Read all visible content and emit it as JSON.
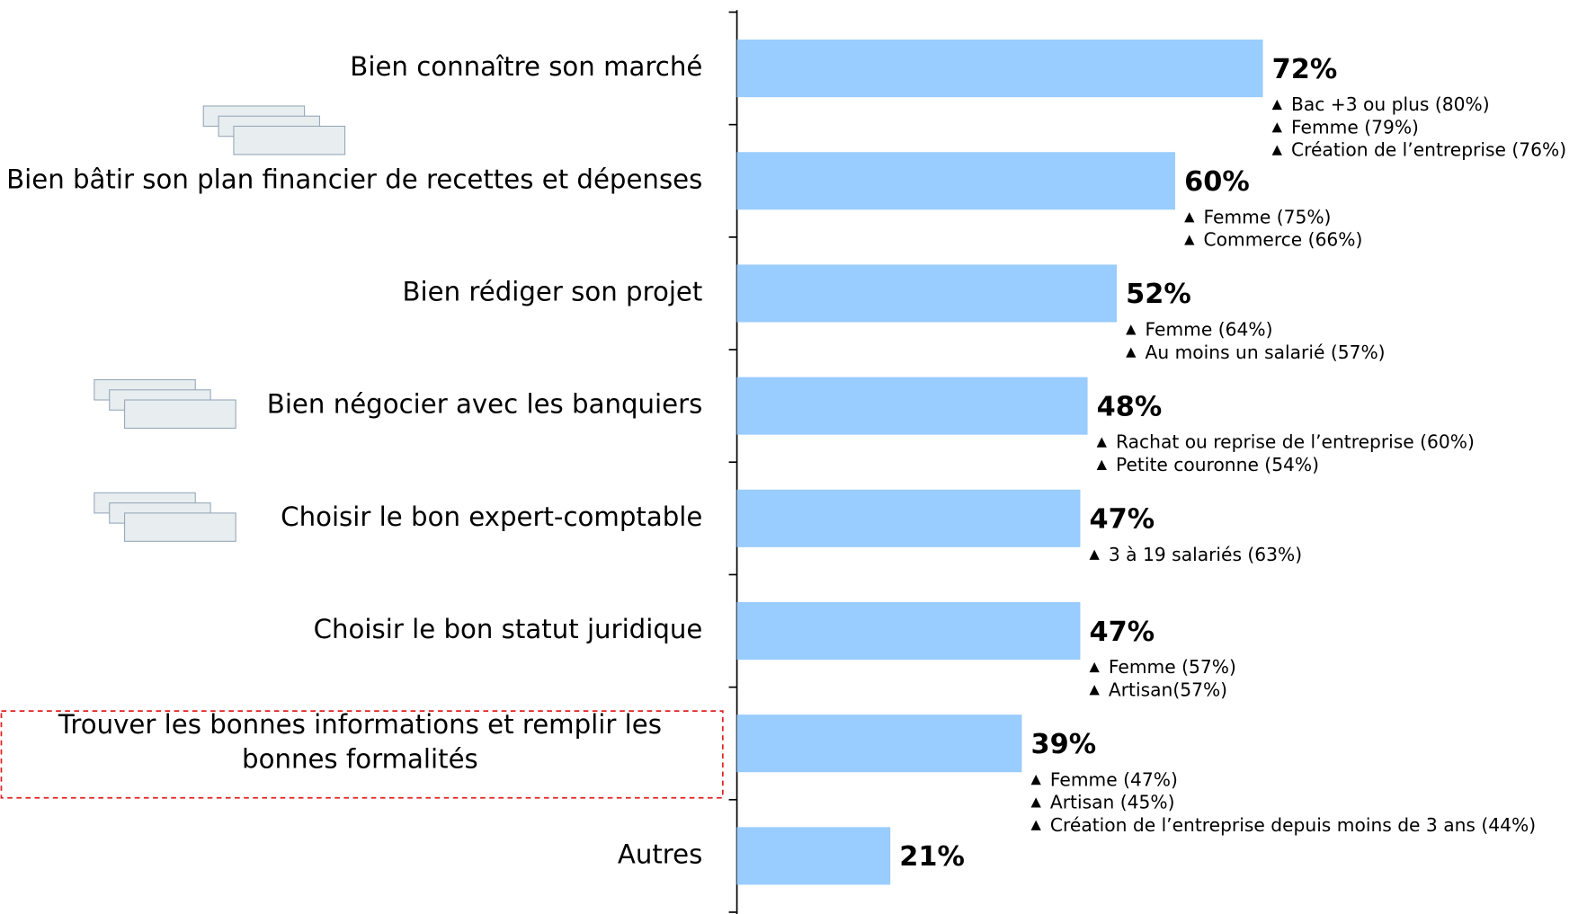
{
  "chart_data": {
    "type": "bar",
    "orientation": "horizontal",
    "categories": [
      "Bien connaître son marché",
      "Bien bâtir son plan financier de recettes et dépenses",
      "Bien rédiger son projet",
      "Bien négocier avec les banquiers",
      "Choisir le bon expert-comptable",
      "Choisir le bon statut juridique",
      "Trouver les bonnes informations et remplir les bonnes formalités",
      "Autres"
    ],
    "values": [
      72,
      60,
      52,
      48,
      47,
      47,
      39,
      21
    ],
    "value_labels": [
      "72%",
      "60%",
      "52%",
      "48%",
      "47%",
      "47%",
      "39%",
      "21%"
    ],
    "annotations": [
      [
        "Bac +3 ou plus (80%)",
        "Femme (79%)",
        "Création de l’entreprise (76%)"
      ],
      [
        "Femme (75%)",
        "Commerce (66%)"
      ],
      [
        "Femme (64%)",
        "Au moins un salarié (57%)"
      ],
      [
        "Rachat ou reprise de l’entreprise (60%)",
        "Petite couronne (54%)"
      ],
      [
        "3 à 19 salariés (63%)"
      ],
      [
        "Femme (57%)",
        "Artisan(57%)"
      ],
      [
        "Femme (47%)",
        "Artisan (45%)",
        "Création de l’entreprise depuis moins de 3 ans (44%)"
      ],
      []
    ],
    "color": "#99ccff",
    "xlim": [
      0,
      100
    ]
  }
}
